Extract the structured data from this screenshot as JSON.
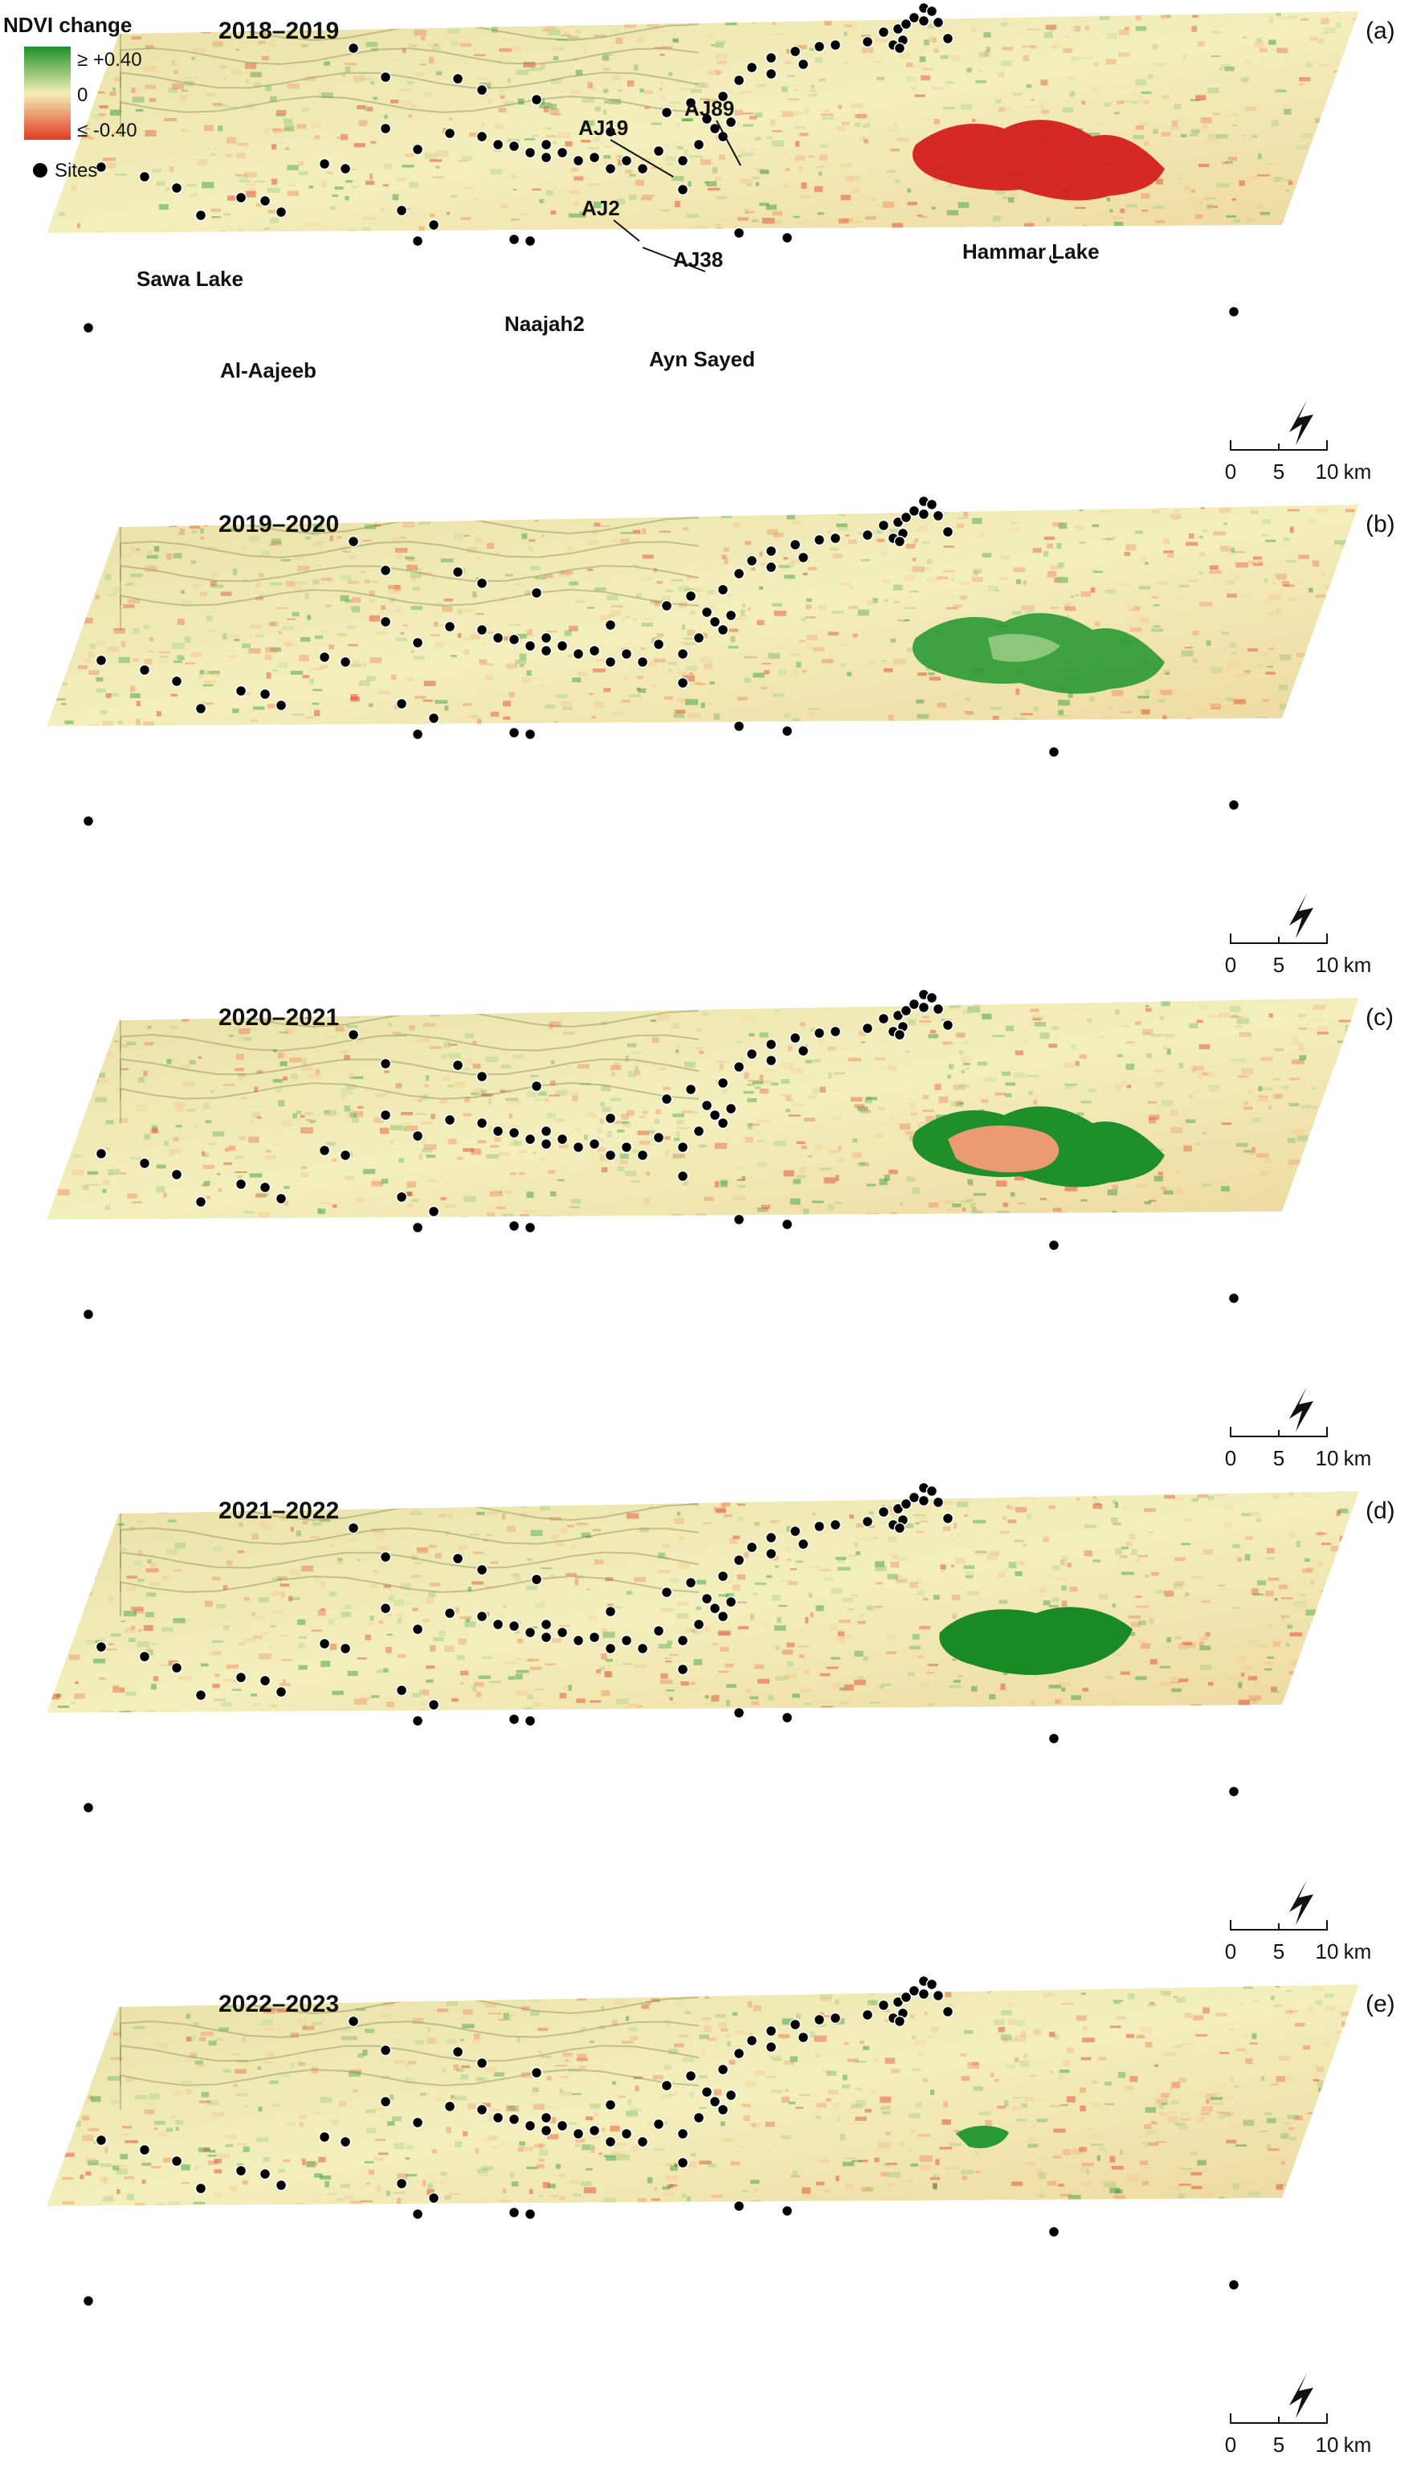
{
  "legend": {
    "title": "NDVI change",
    "max_label": "≥ +0.40",
    "mid_label": "0",
    "min_label": "≤ -0.40",
    "sites_label": "Sites",
    "colors": {
      "positive": "#1e8f2a",
      "neutral": "#f4efb6",
      "negative": "#e23a23"
    }
  },
  "scale_bar": {
    "labels": [
      "0",
      "5",
      "10"
    ],
    "unit": "km"
  },
  "panels": [
    {
      "id": "a",
      "letter": "(a)",
      "period": "2018–2019",
      "lake_state": "decrease"
    },
    {
      "id": "b",
      "letter": "(b)",
      "period": "2019–2020",
      "lake_state": "increase"
    },
    {
      "id": "c",
      "letter": "(c)",
      "period": "2020–2021",
      "lake_state": "ring"
    },
    {
      "id": "d",
      "letter": "(d)",
      "period": "2021–2022",
      "lake_state": "strong_increase"
    },
    {
      "id": "e",
      "letter": "(e)",
      "period": "2022–2023",
      "lake_state": "small"
    }
  ],
  "place_labels": [
    "Sawa Lake",
    "Al-Aajeeb",
    "Naajah2",
    "Ayn Sayed",
    "Hammar Lake"
  ],
  "site_labels": [
    "AJ19",
    "AJ89",
    "AJ2",
    "AJ38"
  ]
}
